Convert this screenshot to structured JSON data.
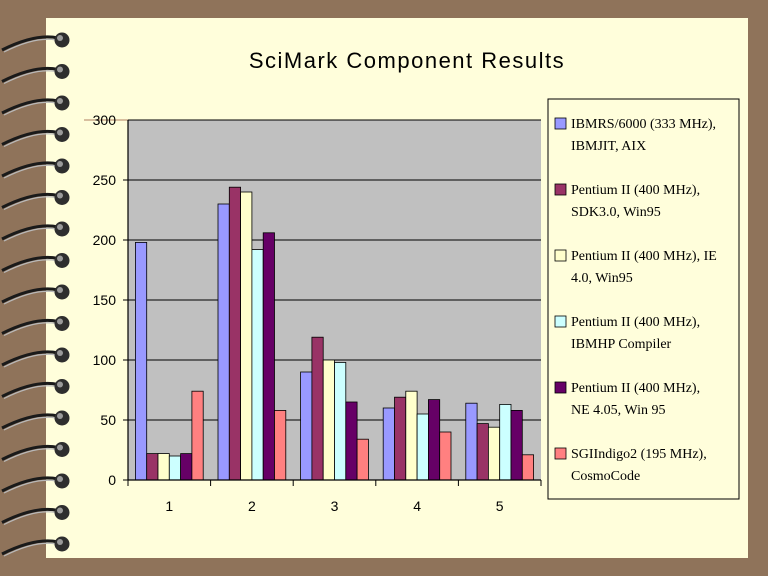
{
  "chart_data": {
    "type": "bar",
    "title": "SciMark Component Results",
    "xlabel": "",
    "ylabel": "",
    "categories": [
      "1",
      "2",
      "3",
      "4",
      "5"
    ],
    "ylim": [
      0,
      300
    ],
    "yticks": [
      "0",
      "50",
      "100",
      "150",
      "200",
      "250",
      "300"
    ],
    "grid": true,
    "legend_position": "right",
    "series": [
      {
        "name_lines": [
          "IBMRS/6000 (333 MHz),",
          "IBMJIT, AIX"
        ],
        "color": "#9999ff",
        "values": [
          198,
          230,
          90,
          60,
          64
        ]
      },
      {
        "name_lines": [
          "Pentium II (400 MHz),",
          "SDK3.0, Win95"
        ],
        "color": "#993366",
        "values": [
          22,
          244,
          119,
          69,
          47
        ]
      },
      {
        "name_lines": [
          "Pentium II (400 MHz), IE",
          "4.0, Win95"
        ],
        "color": "#ffffcc",
        "values": [
          22,
          240,
          100,
          74,
          44
        ]
      },
      {
        "name_lines": [
          "Pentium II (400 MHz),",
          "IBMHP Compiler"
        ],
        "color": "#ccffff",
        "values": [
          20,
          192,
          98,
          55,
          63
        ]
      },
      {
        "name_lines": [
          "Pentium II (400 MHz),",
          "NE 4.05, Win 95"
        ],
        "color": "#660066",
        "values": [
          22,
          206,
          65,
          67,
          58
        ]
      },
      {
        "name_lines": [
          "SGIIndigo2 (195 MHz),",
          "CosmoCode"
        ],
        "color": "#ff8080",
        "values": [
          74,
          58,
          34,
          40,
          21
        ]
      }
    ]
  }
}
